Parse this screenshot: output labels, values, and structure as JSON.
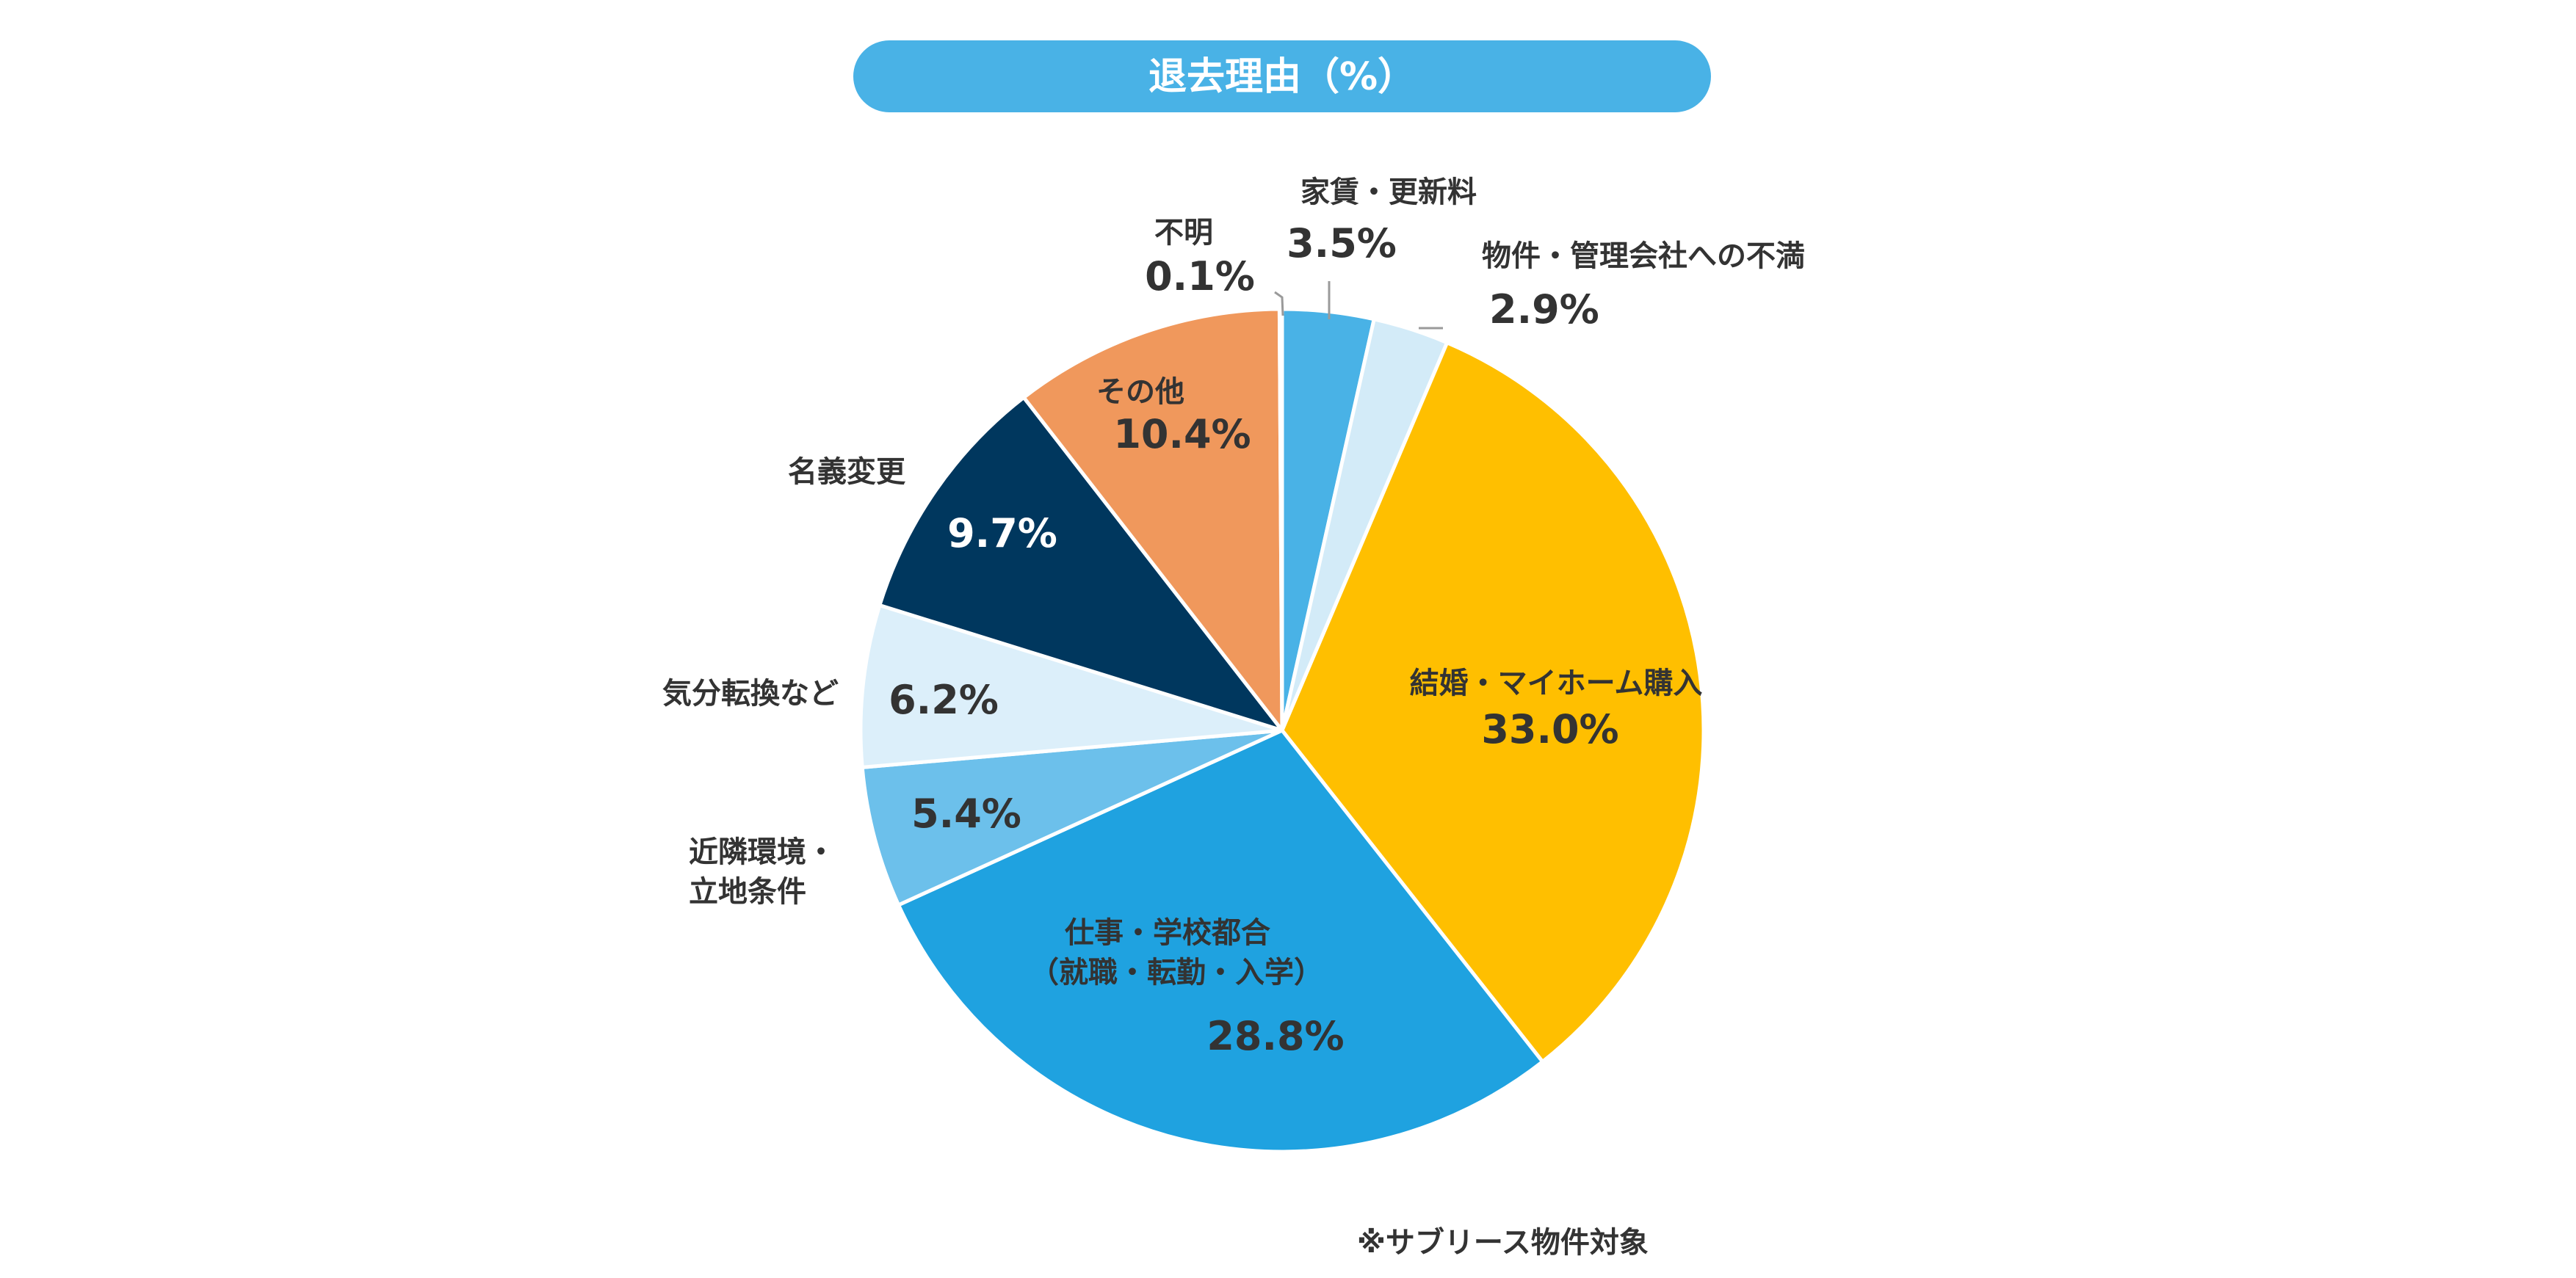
{
  "chart_data": {
    "type": "pie",
    "title": "退去理由（%）",
    "unit": "%",
    "start": "12 o'clock",
    "direction": "clockwise",
    "slices": [
      {
        "label": "家賃・更新料",
        "value": 3.5,
        "value_label": "3.5%",
        "color": "#49B2E6"
      },
      {
        "label": "物件・管理会社への不満",
        "value": 2.9,
        "value_label": "2.9%",
        "color": "#D3EBF8"
      },
      {
        "label": "結婚・マイホーム購入",
        "value": 33.0,
        "value_label": "33.0%",
        "color": "#FFBF00"
      },
      {
        "label": "仕事・学校都合（就職・転勤・入学）",
        "label_lines": [
          "仕事・学校都合",
          "（就職・転勤・入学）"
        ],
        "value": 28.8,
        "value_label": "28.8%",
        "color": "#1FA2E0"
      },
      {
        "label": "近隣環境・立地条件",
        "label_lines": [
          "近隣環境・",
          "立地条件"
        ],
        "value": 5.4,
        "value_label": "5.4%",
        "color": "#6CC0EB"
      },
      {
        "label": "気分転換など",
        "value": 6.2,
        "value_label": "6.2%",
        "color": "#DCEFFA"
      },
      {
        "label": "名義変更",
        "value": 9.7,
        "value_label": "9.7%",
        "color": "#00375E"
      },
      {
        "label": "その他",
        "value": 10.4,
        "value_label": "10.4%",
        "color": "#F0985C"
      },
      {
        "label": "不明",
        "value": 0.1,
        "value_label": "0.1%",
        "color": "#C9C9C9"
      }
    ],
    "footnote": "※サブリース物件対象"
  },
  "colors": {
    "title_bg": "#49B2E6",
    "title_text": "#FFFFFF",
    "label_text": "#333333",
    "leader_line": "#9A9A9A",
    "slice_border": "#FFFFFF"
  }
}
